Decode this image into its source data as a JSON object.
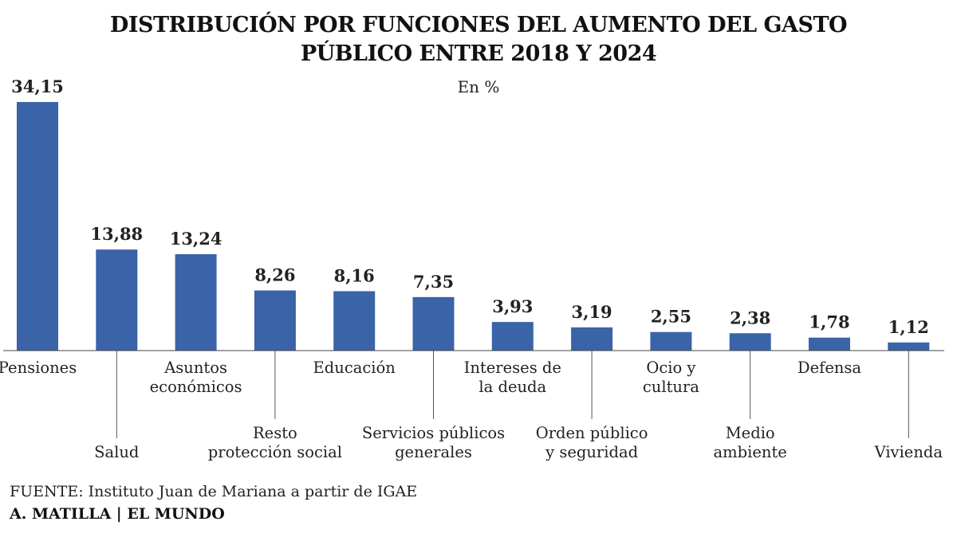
{
  "header": {
    "title_line1": "DISTRIBUCIÓN POR FUNCIONES DEL AUMENTO DEL GASTO",
    "title_line2": "PÚBLICO ENTRE 2018 Y 2024",
    "subtitle": "En %"
  },
  "chart_data": {
    "type": "bar",
    "title": "DISTRIBUCIÓN POR FUNCIONES DEL AUMENTO DEL GASTO PÚBLICO ENTRE 2018 Y 2024",
    "subtitle": "En %",
    "categories": [
      "Pensiones",
      "Salud",
      "Asuntos económicos",
      "Resto protección social",
      "Educación",
      "Servicios públicos generales",
      "Intereses de la deuda",
      "Orden público y seguridad",
      "Ocio y cultura",
      "Medio ambiente",
      "Defensa",
      "Vivienda"
    ],
    "category_lines": [
      [
        "Pensiones"
      ],
      [
        "Salud"
      ],
      [
        "Asuntos",
        "económicos"
      ],
      [
        "Resto",
        "protección social"
      ],
      [
        "Educación"
      ],
      [
        "Servicios públicos",
        "generales"
      ],
      [
        "Intereses de",
        "la deuda"
      ],
      [
        "Orden público",
        "y seguridad"
      ],
      [
        "Ocio y",
        "cultura"
      ],
      [
        "Medio",
        "ambiente"
      ],
      [
        "Defensa"
      ],
      [
        "Vivienda"
      ]
    ],
    "values": [
      34.15,
      13.88,
      13.24,
      8.26,
      8.16,
      7.35,
      3.93,
      3.19,
      2.55,
      2.38,
      1.78,
      1.12
    ],
    "value_labels": [
      "34,15",
      "13,88",
      "13,24",
      "8,26",
      "8,16",
      "7,35",
      "3,93",
      "3,19",
      "2,55",
      "2,38",
      "1,78",
      "1,12"
    ],
    "xlabel": "",
    "ylabel": "",
    "ylim": [
      0,
      34.15
    ],
    "grid": false,
    "bar_color": "#3a63a8",
    "label_layout": "alternating"
  },
  "footer": {
    "source_label": "FUENTE:",
    "source_text": " Instituto Juan de Mariana a partir de IGAE",
    "credit": "A. MATILLA | EL MUNDO"
  }
}
